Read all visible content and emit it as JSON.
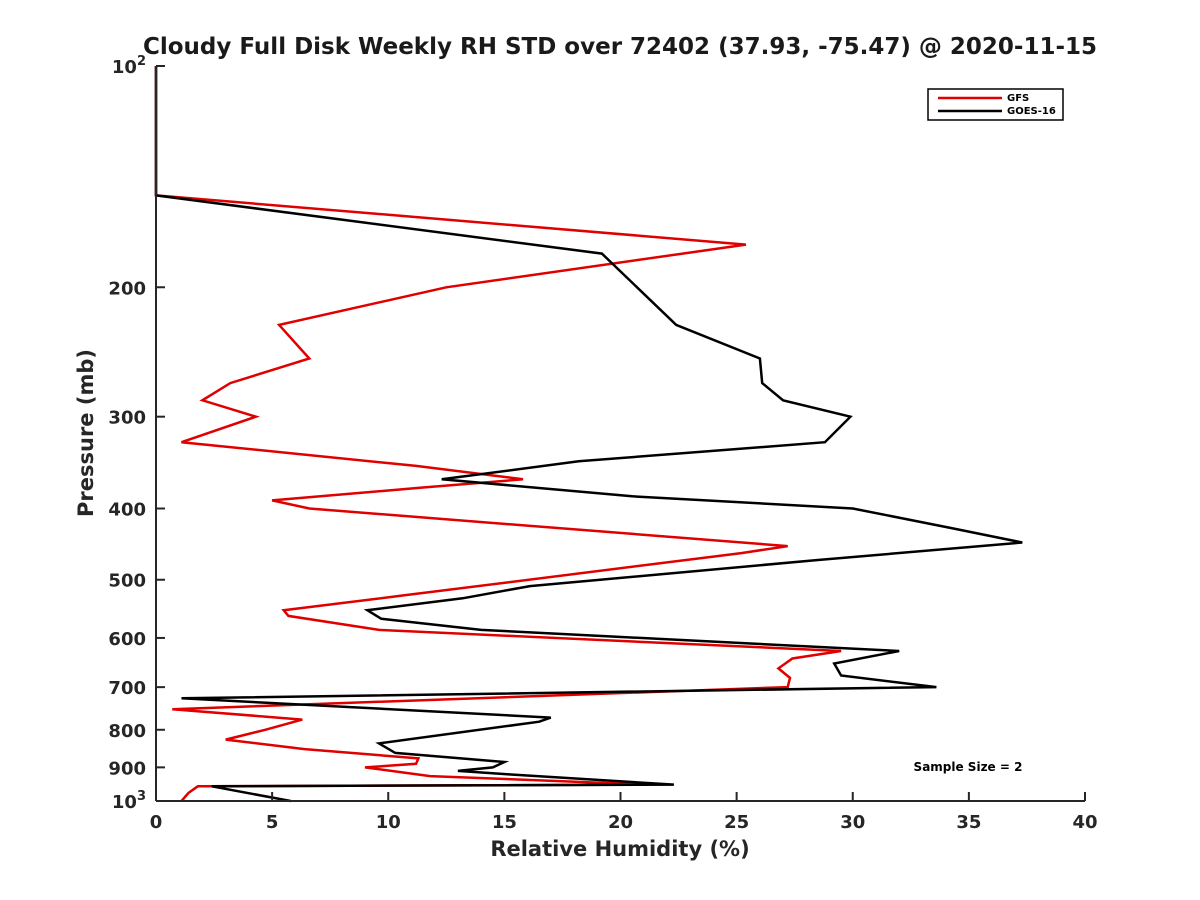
{
  "chart_data": {
    "type": "line",
    "title": "Cloudy Full Disk Weekly RH STD over 72402 (37.93, -75.47) @ 2020-11-15",
    "xlabel": "Relative Humidity (%)",
    "ylabel": "Pressure (mb)",
    "xlim": [
      0,
      40
    ],
    "ylim": [
      100,
      1000
    ],
    "y_scale": "log",
    "y_reversed": true,
    "x_ticks": [
      "0",
      "5",
      "10",
      "15",
      "20",
      "25",
      "30",
      "35",
      "40"
    ],
    "x_tick_values": [
      0,
      5,
      10,
      15,
      20,
      25,
      30,
      35,
      40
    ],
    "y_ticks": [
      {
        "value": 100,
        "base": "10",
        "exp": "2"
      },
      {
        "value": 200,
        "label": "200"
      },
      {
        "value": 300,
        "label": "300"
      },
      {
        "value": 400,
        "label": "400"
      },
      {
        "value": 500,
        "label": "500"
      },
      {
        "value": 600,
        "label": "600"
      },
      {
        "value": 700,
        "label": "700"
      },
      {
        "value": 800,
        "label": "800"
      },
      {
        "value": 900,
        "label": "900"
      },
      {
        "value": 1000,
        "base": "10",
        "exp": "3"
      }
    ],
    "legend_position": "top-right",
    "annotation": "Sample Size = 2",
    "series": [
      {
        "name": "GFS",
        "color": "#e00000",
        "points": [
          [
            0,
            100
          ],
          [
            0,
            150
          ],
          [
            25.4,
            175
          ],
          [
            12.5,
            200
          ],
          [
            5.3,
            225
          ],
          [
            6.6,
            250
          ],
          [
            3.2,
            270
          ],
          [
            2.0,
            285
          ],
          [
            4.3,
            300
          ],
          [
            1.1,
            325
          ],
          [
            11.2,
            350
          ],
          [
            15.8,
            365
          ],
          [
            11.3,
            375
          ],
          [
            5.0,
            390
          ],
          [
            6.6,
            400
          ],
          [
            27.2,
            450
          ],
          [
            25.2,
            460
          ],
          [
            10.7,
            525
          ],
          [
            5.5,
            550
          ],
          [
            5.7,
            560
          ],
          [
            9.6,
            585
          ],
          [
            29.5,
            625
          ],
          [
            27.4,
            640
          ],
          [
            26.8,
            660
          ],
          [
            27.3,
            680
          ],
          [
            27.2,
            700
          ],
          [
            0.7,
            750
          ],
          [
            6.3,
            775
          ],
          [
            4.7,
            800
          ],
          [
            3.0,
            825
          ],
          [
            6.4,
            850
          ],
          [
            11.3,
            875
          ],
          [
            11.2,
            890
          ],
          [
            9.0,
            900
          ],
          [
            11.8,
            925
          ],
          [
            21.2,
            950
          ],
          [
            1.8,
            955
          ],
          [
            1.4,
            975
          ],
          [
            1.1,
            1000
          ]
        ]
      },
      {
        "name": "GOES-16",
        "color": "#000000",
        "points": [
          [
            0,
            100
          ],
          [
            0,
            150
          ],
          [
            19.2,
            180
          ],
          [
            22.4,
            225
          ],
          [
            26.0,
            250
          ],
          [
            26.1,
            270
          ],
          [
            27.0,
            285
          ],
          [
            29.9,
            300
          ],
          [
            28.8,
            325
          ],
          [
            18.2,
            345
          ],
          [
            12.3,
            365
          ],
          [
            20.5,
            385
          ],
          [
            30.0,
            400
          ],
          [
            34.2,
            425
          ],
          [
            37.3,
            445
          ],
          [
            28.5,
            470
          ],
          [
            16.1,
            510
          ],
          [
            13.2,
            530
          ],
          [
            9.1,
            550
          ],
          [
            9.7,
            565
          ],
          [
            14.0,
            585
          ],
          [
            32.0,
            625
          ],
          [
            29.2,
            650
          ],
          [
            29.5,
            675
          ],
          [
            33.6,
            700
          ],
          [
            1.1,
            725
          ],
          [
            17.0,
            770
          ],
          [
            16.5,
            780
          ],
          [
            9.6,
            835
          ],
          [
            10.3,
            860
          ],
          [
            15.0,
            885
          ],
          [
            14.5,
            900
          ],
          [
            13.0,
            910
          ],
          [
            15.2,
            920
          ],
          [
            22.3,
            950
          ],
          [
            2.4,
            955
          ],
          [
            5.8,
            1000
          ]
        ]
      }
    ]
  }
}
